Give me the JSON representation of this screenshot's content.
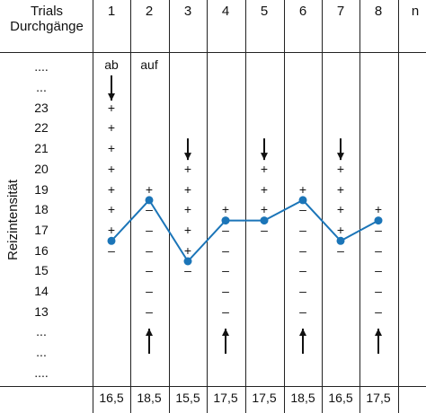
{
  "header": {
    "title_line1": "Trials",
    "title_line2": "Durchgänge",
    "trials": [
      "1",
      "2",
      "3",
      "4",
      "5",
      "6",
      "7",
      "8",
      "n"
    ]
  },
  "y_axis_label": "Reizintensität",
  "levels": [
    "....",
    "...",
    "23",
    "22",
    "21",
    "20",
    "19",
    "18",
    "17",
    "16",
    "15",
    "14",
    "13",
    "...",
    "...",
    "...."
  ],
  "direction_labels": [
    {
      "trial": 1,
      "text": "ab"
    },
    {
      "trial": 2,
      "text": "auf"
    }
  ],
  "chart_data": {
    "type": "line",
    "x": [
      1,
      2,
      3,
      4,
      5,
      6,
      7,
      8
    ],
    "values": [
      16.5,
      18.5,
      15.5,
      17.5,
      17.5,
      18.5,
      16.5,
      17.5
    ],
    "ylim": [
      13,
      23
    ],
    "line_color": "#1b75b8",
    "columns": [
      {
        "trial": 1,
        "direction": "down",
        "arrow_at": "top",
        "plus": [
          23,
          22,
          21,
          20,
          19,
          18,
          17
        ],
        "minus": [
          16
        ]
      },
      {
        "trial": 2,
        "direction": "up",
        "arrow_at": "bottom",
        "plus": [
          19
        ],
        "minus": [
          18,
          17,
          16,
          15,
          14,
          13
        ]
      },
      {
        "trial": 3,
        "direction": "down",
        "arrow_at": 21,
        "plus": [
          20,
          19,
          18,
          17,
          16
        ],
        "minus": [
          15
        ]
      },
      {
        "trial": 4,
        "direction": "up",
        "arrow_at": "bottom",
        "plus": [
          18
        ],
        "minus": [
          17,
          16,
          15,
          14,
          13
        ]
      },
      {
        "trial": 5,
        "direction": "down",
        "arrow_at": 21,
        "plus": [
          20,
          19,
          18
        ],
        "minus": [
          17
        ]
      },
      {
        "trial": 6,
        "direction": "up",
        "arrow_at": "bottom",
        "plus": [
          19
        ],
        "minus": [
          18,
          17,
          16,
          15,
          14,
          13
        ]
      },
      {
        "trial": 7,
        "direction": "down",
        "arrow_at": 21,
        "plus": [
          20,
          19,
          18,
          17
        ],
        "minus": [
          16
        ]
      },
      {
        "trial": 8,
        "direction": "up",
        "arrow_at": "bottom",
        "plus": [
          18
        ],
        "minus": [
          17,
          16,
          15,
          14,
          13
        ]
      }
    ]
  },
  "footer_values": [
    "16,5",
    "18,5",
    "15,5",
    "17,5",
    "17,5",
    "18,5",
    "16,5",
    "17,5"
  ]
}
